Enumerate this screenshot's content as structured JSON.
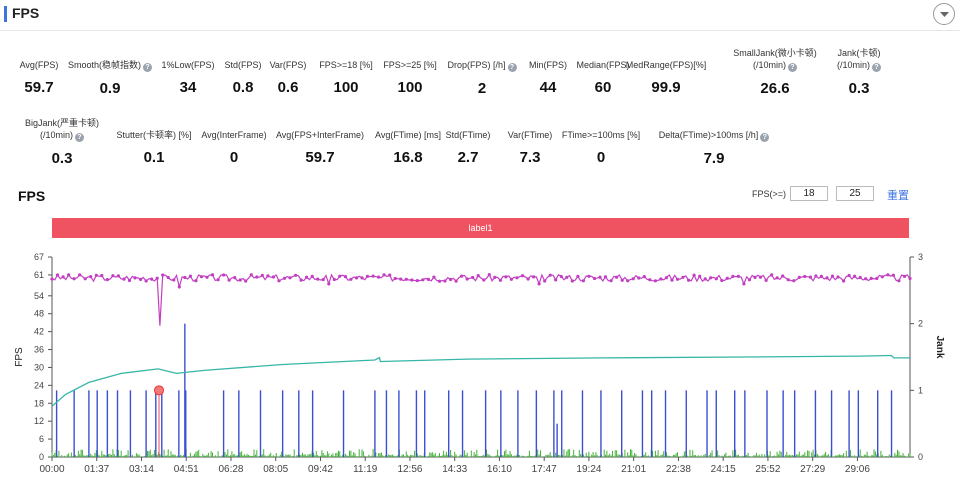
{
  "header": {
    "title": "FPS"
  },
  "stats_row1": [
    {
      "label": "Avg(FPS)",
      "label2": "",
      "value": "59.7",
      "help": false
    },
    {
      "label": "Smooth(稳帧指数)",
      "label2": "",
      "value": "0.9",
      "help": true
    },
    {
      "label": "1%Low(FPS)",
      "label2": "",
      "value": "34",
      "help": false
    },
    {
      "label": "Std(FPS)",
      "label2": "",
      "value": "0.8",
      "help": false
    },
    {
      "label": "Var(FPS)",
      "label2": "",
      "value": "0.6",
      "help": false
    },
    {
      "label": "FPS>=18 [%]",
      "label2": "",
      "value": "100",
      "help": false
    },
    {
      "label": "FPS>=25 [%]",
      "label2": "",
      "value": "100",
      "help": false
    },
    {
      "label": "Drop(FPS) [/h]",
      "label2": "",
      "value": "2",
      "help": true
    },
    {
      "label": "Min(FPS)",
      "label2": "",
      "value": "44",
      "help": false
    },
    {
      "label": "Median(FPS)",
      "label2": "",
      "value": "60",
      "help": false
    },
    {
      "label": "MedRange(FPS)[%]",
      "label2": "",
      "value": "99.9",
      "help": false
    },
    {
      "label": "SmallJank(微小卡顿)",
      "label2": "(/10min)",
      "value": "26.6",
      "help": true
    },
    {
      "label": "Jank(卡顿)",
      "label2": "(/10min)",
      "value": "0.3",
      "help": true
    }
  ],
  "stats_row2": [
    {
      "label": "BigJank(严重卡顿)",
      "label2": "(/10min)",
      "value": "0.3",
      "help": true
    },
    {
      "label": "Stutter(卡顿率) [%]",
      "label2": "",
      "value": "0.1",
      "help": false
    },
    {
      "label": "Avg(InterFrame)",
      "label2": "",
      "value": "0",
      "help": false
    },
    {
      "label": "Avg(FPS+InterFrame)",
      "label2": "",
      "value": "59.7",
      "help": false
    },
    {
      "label": "Avg(FTime) [ms]",
      "label2": "",
      "value": "16.8",
      "help": false
    },
    {
      "label": "Std(FTime)",
      "label2": "",
      "value": "2.7",
      "help": false
    },
    {
      "label": "Var(FTime)",
      "label2": "",
      "value": "7.3",
      "help": false
    },
    {
      "label": "FTime>=100ms [%]",
      "label2": "",
      "value": "0",
      "help": false
    },
    {
      "label": "Delta(FTime)>100ms [/h]",
      "label2": "",
      "value": "7.9",
      "help": true
    }
  ],
  "chart_section": {
    "title": "FPS",
    "threshold_label": "FPS(>=)",
    "threshold_1": "18",
    "threshold_2": "25",
    "reset_label": "重置",
    "label_bar": "label1"
  },
  "colors": {
    "fps_series": "#c23fc2",
    "cumulative_series": "#36b6a6",
    "jank_series": "#3c4fd1",
    "small_jank_series": "#45b23a",
    "label_bar": "#ef5362",
    "accent": "#3f74e0"
  },
  "chart_data": {
    "type": "line",
    "x_tick_labels": [
      "00:00",
      "01:37",
      "03:14",
      "04:51",
      "06:28",
      "08:05",
      "09:42",
      "11:19",
      "12:56",
      "14:33",
      "16:10",
      "17:47",
      "19:24",
      "21:01",
      "22:38",
      "24:15",
      "25:52",
      "27:29",
      "29:06"
    ],
    "x_range_seconds": [
      0,
      1860
    ],
    "y_left_label": "FPS",
    "y_left_ticks": [
      0,
      6,
      12,
      18,
      24,
      30,
      36,
      42,
      48,
      54,
      61,
      67
    ],
    "y_left_range": [
      0,
      67
    ],
    "y_right_label": "Jank",
    "y_right_ticks": [
      0,
      1,
      2,
      3
    ],
    "y_right_range": [
      0,
      3
    ],
    "fps_level": 60,
    "fps_dips": [
      {
        "t": 232,
        "value": 44
      },
      {
        "t": 278,
        "value": 57
      },
      {
        "t": 600,
        "value": 58
      },
      {
        "t": 1055,
        "value": 58
      },
      {
        "t": 1500,
        "value": 58
      }
    ],
    "cumulative_curve": [
      [
        0,
        17
      ],
      [
        30,
        21
      ],
      [
        80,
        25
      ],
      [
        150,
        28
      ],
      [
        230,
        29.5
      ],
      [
        270,
        28
      ],
      [
        330,
        29
      ],
      [
        500,
        31
      ],
      [
        700,
        32.5
      ],
      [
        710,
        33.3
      ],
      [
        712,
        32
      ],
      [
        900,
        32.8
      ],
      [
        1200,
        33.2
      ],
      [
        1500,
        33.5
      ],
      [
        1750,
        33.8
      ],
      [
        1820,
        34
      ],
      [
        1825,
        33.2
      ],
      [
        1860,
        33.2
      ]
    ],
    "jank_spikes_t": [
      10,
      48,
      80,
      98,
      120,
      142,
      170,
      204,
      225,
      238,
      275,
      290,
      372,
      405,
      452,
      500,
      535,
      565,
      632,
      700,
      725,
      752,
      790,
      808,
      860,
      890,
      940,
      973,
      1010,
      1050,
      1088,
      1105,
      1150,
      1190,
      1235,
      1280,
      1300,
      1330,
      1375,
      1420,
      1440,
      1480,
      1502,
      1550,
      1585,
      1610,
      1655,
      1690,
      1728,
      1748,
      1790,
      1820
    ],
    "jank_spike_value": 1,
    "big_spikes": [
      {
        "t": 288,
        "value": 2
      },
      {
        "t": 1095,
        "value": 0.5
      }
    ],
    "marker": {
      "t": 232,
      "value": 1
    },
    "series": [
      {
        "name": "FPS",
        "axis": "left"
      },
      {
        "name": "Jank",
        "axis": "right"
      }
    ]
  }
}
